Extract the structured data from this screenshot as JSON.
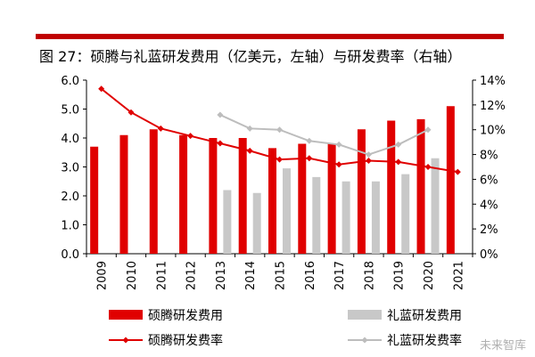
{
  "title": "图 27：硕腾与礼蓝研发费用（亿美元，左轴）与研发费率（右轴）",
  "watermark": "未来智库",
  "chart_data": {
    "type": "bar",
    "categories": [
      "2009",
      "2010",
      "2011",
      "2012",
      "2013",
      "2014",
      "2015",
      "2016",
      "2017",
      "2018",
      "2019",
      "2020",
      "2021"
    ],
    "y_left": {
      "ylim": [
        0,
        6
      ],
      "ticks": [
        "0.0",
        "1.0",
        "2.0",
        "3.0",
        "4.0",
        "5.0",
        "6.0"
      ]
    },
    "y_right": {
      "ylim": [
        0,
        14
      ],
      "ticks": [
        "0%",
        "2%",
        "4%",
        "6%",
        "8%",
        "10%",
        "12%",
        "14%"
      ]
    },
    "series": [
      {
        "name": "硕腾研发费用",
        "type": "bar",
        "axis": "left",
        "color": "#e00000",
        "values": [
          3.7,
          4.1,
          4.3,
          4.1,
          4.0,
          4.0,
          3.65,
          3.8,
          3.8,
          4.3,
          4.6,
          4.65,
          5.1
        ]
      },
      {
        "name": "礼蓝研发费用",
        "type": "bar",
        "axis": "left",
        "color": "#c8c8c8",
        "values": [
          null,
          null,
          null,
          null,
          2.2,
          2.1,
          2.95,
          2.65,
          2.5,
          2.5,
          2.75,
          3.3,
          null
        ]
      },
      {
        "name": "硕腾研发费率",
        "type": "line",
        "axis": "right",
        "color": "#e00000",
        "values": [
          13.3,
          11.4,
          10.1,
          9.5,
          8.9,
          8.3,
          7.6,
          7.7,
          7.2,
          7.5,
          7.4,
          7.0,
          6.6
        ]
      },
      {
        "name": "礼蓝研发费率",
        "type": "line",
        "axis": "right",
        "color": "#bdbdbd",
        "values": [
          null,
          null,
          null,
          null,
          11.2,
          10.1,
          10.0,
          9.1,
          8.8,
          8.0,
          8.8,
          10.0,
          null
        ]
      }
    ]
  }
}
